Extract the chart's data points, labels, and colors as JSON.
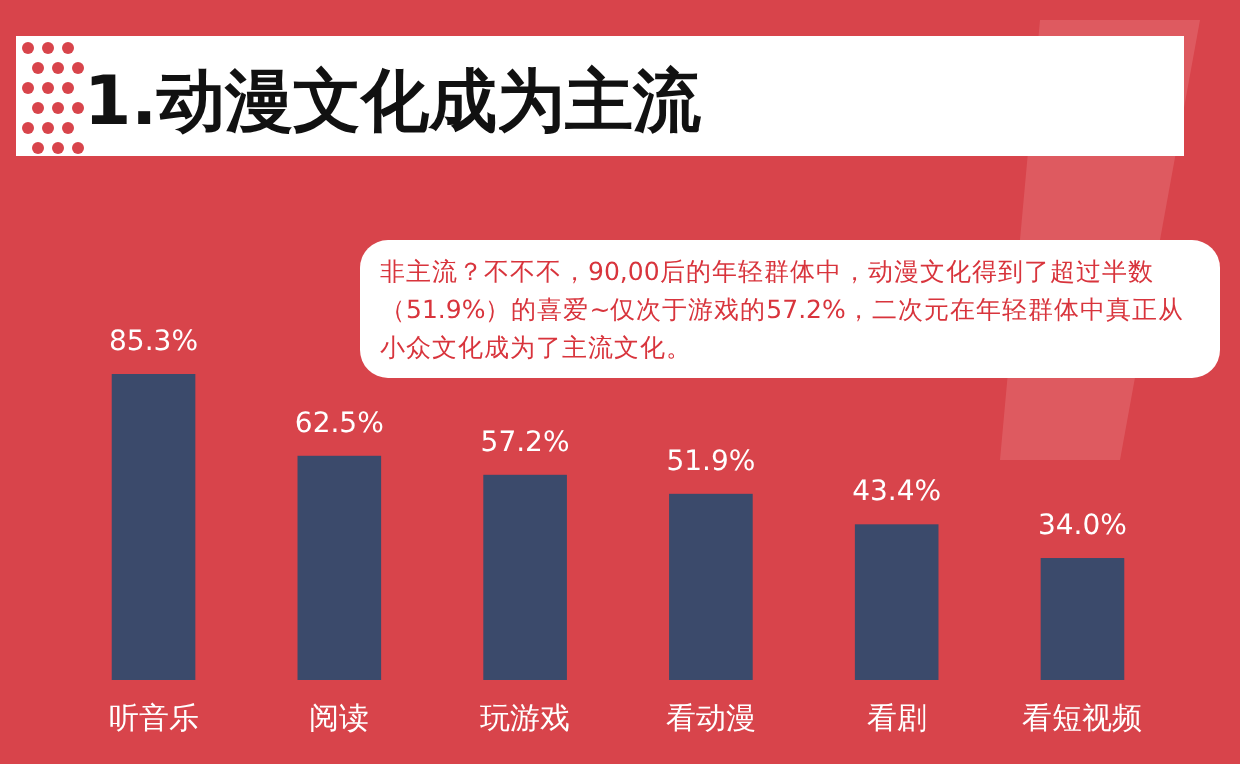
{
  "chart_data": {
    "type": "bar",
    "title": "1.动漫文化成为主流",
    "annotations": [
      "非主流？不不不，90,00后的年轻群体中，动漫文化得到了超过半数（51.9%）的喜爱~仅次于游戏的57.2%，二次元在年轻群体中真正从小众文化成为了主流文化。"
    ],
    "categories": [
      "听音乐",
      "阅读",
      "玩游戏",
      "看动漫",
      "看剧",
      "看短视频"
    ],
    "values": [
      85.3,
      62.5,
      57.2,
      51.9,
      43.4,
      34.0
    ],
    "value_labels": [
      "85.3%",
      "62.5%",
      "57.2%",
      "51.9%",
      "43.4%",
      "34.0%"
    ],
    "color": "#3b4a6b"
  }
}
